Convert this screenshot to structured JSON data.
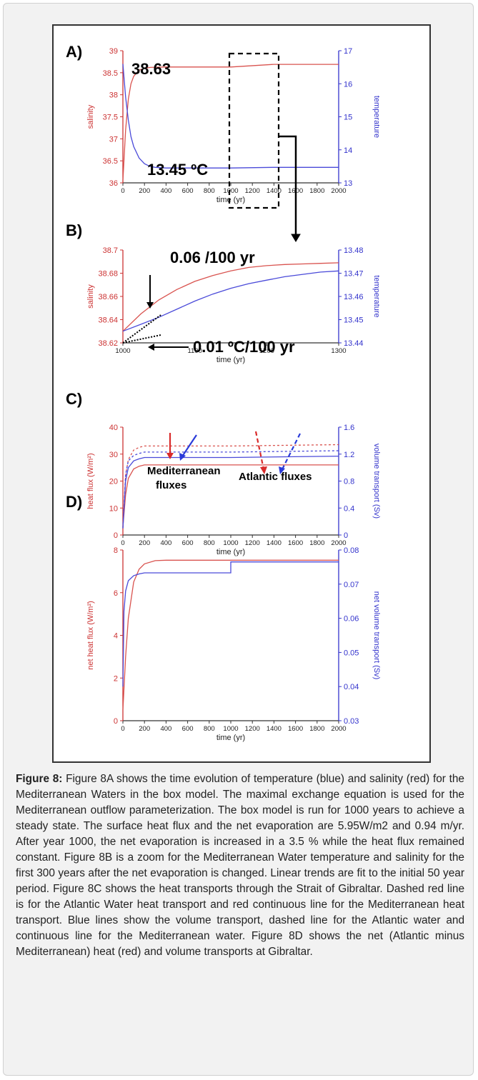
{
  "figure": {
    "panels": [
      {
        "id": "A",
        "label": "A)",
        "xlabel": "time (yr)",
        "ylabel_left": "salinity",
        "ylabel_right": "temperature",
        "annotations": [
          "38.63",
          "13.45 ºC"
        ]
      },
      {
        "id": "B",
        "label": "B)",
        "xlabel": "time (yr)",
        "ylabel_left": "salinity",
        "ylabel_right": "temperature",
        "annotations": [
          "0.06 /100 yr",
          "0.01 ºC/100 yr"
        ]
      },
      {
        "id": "C",
        "label": "C)",
        "xlabel": "time (yr)",
        "ylabel_left": "heat flux (W/m²)",
        "ylabel_right": "volume transport (Sv)",
        "annotations": [
          "Mediterranean",
          "fluxes",
          "Atlantic fluxes"
        ]
      },
      {
        "id": "D",
        "label": "D)",
        "xlabel": "time (yr)",
        "ylabel_left": "net heat flux (W/m²)",
        "ylabel_right": "net volume transport (Sv)",
        "annotations": []
      }
    ]
  },
  "chart_data": [
    {
      "type": "line",
      "panel": "A",
      "xlim": [
        0,
        2000
      ],
      "xticks": [
        0,
        200,
        400,
        600,
        800,
        1000,
        1200,
        1400,
        1600,
        1800,
        2000
      ],
      "ylim_left": [
        36,
        39
      ],
      "yticks_left": [
        36,
        36.5,
        37,
        37.5,
        38,
        38.5,
        39
      ],
      "ylim_right": [
        13,
        17
      ],
      "yticks_right": [
        13,
        14,
        15,
        16,
        17
      ],
      "series": [
        {
          "axis": "left",
          "color": "#d9534f",
          "x": [
            0,
            25,
            50,
            75,
            100,
            150,
            200,
            250,
            300,
            400,
            600,
            1000,
            1400,
            2000
          ],
          "y": [
            36.05,
            37.2,
            37.9,
            38.25,
            38.42,
            38.56,
            38.6,
            38.62,
            38.625,
            38.63,
            38.63,
            38.63,
            38.69,
            38.69
          ]
        },
        {
          "axis": "right",
          "color": "#4a4ad9",
          "x": [
            0,
            25,
            50,
            75,
            100,
            150,
            200,
            250,
            300,
            400,
            600,
            1000,
            1400,
            2000
          ],
          "y": [
            16.6,
            15.6,
            14.9,
            14.4,
            14.1,
            13.75,
            13.58,
            13.5,
            13.47,
            13.45,
            13.45,
            13.45,
            13.47,
            13.47
          ]
        }
      ]
    },
    {
      "type": "line",
      "panel": "B",
      "xlim": [
        1000,
        1300
      ],
      "xticks": [
        1000,
        1100,
        1200,
        1300
      ],
      "ylim_left": [
        38.62,
        38.7
      ],
      "yticks_left": [
        38.62,
        38.64,
        38.66,
        38.68,
        38.7
      ],
      "ylim_right": [
        13.44,
        13.48
      ],
      "yticks_right": [
        13.44,
        13.45,
        13.46,
        13.47,
        13.48
      ],
      "series": [
        {
          "axis": "left",
          "color": "#d9534f",
          "x": [
            1000,
            1025,
            1050,
            1075,
            1100,
            1125,
            1150,
            1175,
            1200,
            1225,
            1250,
            1275,
            1300
          ],
          "y": [
            38.63,
            38.645,
            38.657,
            38.666,
            38.673,
            38.678,
            38.682,
            38.685,
            38.6865,
            38.6875,
            38.688,
            38.6885,
            38.689
          ]
        },
        {
          "axis": "right",
          "color": "#4a4ad9",
          "x": [
            1000,
            1025,
            1050,
            1075,
            1100,
            1125,
            1150,
            1175,
            1200,
            1225,
            1250,
            1275,
            1300
          ],
          "y": [
            13.445,
            13.448,
            13.451,
            13.4545,
            13.458,
            13.461,
            13.4635,
            13.4655,
            13.467,
            13.4685,
            13.4695,
            13.4705,
            13.471
          ]
        }
      ]
    },
    {
      "type": "line",
      "panel": "C",
      "xlim": [
        0,
        2000
      ],
      "xticks": [
        0,
        200,
        400,
        600,
        800,
        1000,
        1200,
        1400,
        1600,
        1800,
        2000
      ],
      "ylim_left": [
        0,
        40
      ],
      "yticks_left": [
        0,
        10,
        20,
        30,
        40
      ],
      "ylim_right": [
        0,
        1.6
      ],
      "yticks_right": [
        0,
        0.4,
        0.8,
        1.2,
        1.6
      ],
      "series": [
        {
          "axis": "left",
          "color": "#d9534f",
          "dashed": false,
          "x": [
            0,
            25,
            50,
            100,
            150,
            200,
            300,
            1000,
            2000
          ],
          "y": [
            3,
            15,
            21,
            24.5,
            25.5,
            26,
            26,
            26,
            26
          ]
        },
        {
          "axis": "left",
          "color": "#d9534f",
          "dashed": true,
          "x": [
            0,
            25,
            50,
            100,
            150,
            200,
            300,
            1000,
            2000
          ],
          "y": [
            3,
            22,
            28,
            31.5,
            32.5,
            33,
            33,
            33,
            33.5
          ]
        },
        {
          "axis": "right",
          "color": "#4a4ad9",
          "dashed": false,
          "x": [
            0,
            25,
            50,
            100,
            150,
            200,
            300,
            1000,
            2000
          ],
          "y": [
            0.1,
            0.8,
            1.0,
            1.1,
            1.13,
            1.15,
            1.15,
            1.15,
            1.17
          ]
        },
        {
          "axis": "right",
          "color": "#4a4ad9",
          "dashed": true,
          "x": [
            0,
            25,
            50,
            100,
            150,
            200,
            300,
            1000,
            2000
          ],
          "y": [
            0.1,
            0.9,
            1.1,
            1.18,
            1.21,
            1.23,
            1.23,
            1.23,
            1.25
          ]
        }
      ]
    },
    {
      "type": "line",
      "panel": "D",
      "xlim": [
        0,
        2000
      ],
      "xticks": [
        0,
        200,
        400,
        600,
        800,
        1000,
        1200,
        1400,
        1600,
        1800,
        2000
      ],
      "ylim_left": [
        0,
        8
      ],
      "yticks_left": [
        0,
        2,
        4,
        6,
        8
      ],
      "ylim_right": [
        0.03,
        0.08
      ],
      "yticks_right": [
        0.03,
        0.04,
        0.05,
        0.06,
        0.07,
        0.08
      ],
      "series": [
        {
          "axis": "left",
          "color": "#d9534f",
          "x": [
            0,
            25,
            50,
            100,
            150,
            200,
            300,
            400,
            600,
            1000,
            2000
          ],
          "y": [
            0.5,
            3.0,
            4.8,
            6.5,
            7.1,
            7.35,
            7.5,
            7.52,
            7.52,
            7.52,
            7.52
          ]
        },
        {
          "axis": "right",
          "color": "#4a4ad9",
          "x": [
            0,
            10,
            25,
            50,
            100,
            150,
            200,
            300,
            600,
            1000,
            1000,
            2000
          ],
          "y": [
            0.04,
            0.062,
            0.068,
            0.071,
            0.0725,
            0.073,
            0.0733,
            0.0733,
            0.0733,
            0.0733,
            0.0765,
            0.0765
          ]
        }
      ]
    }
  ],
  "caption": {
    "label": "Figure 8:",
    "text": " Figure 8A shows the time evolution of temperature (blue) and salinity (red) for the Mediterranean Waters in the box model. The maximal exchange equation is used for the Mediterranean outflow parameterization. The box model is run for 1000 years to achieve a steady state. The surface heat flux and the net evaporation are 5.95W/m2 and 0.94 m/yr. After year 1000, the net evaporation is increased in a 3.5 % while the heat flux remained constant. Figure 8B is a zoom for the Mediterranean Water temperature and salinity for the first 300 years after the net evaporation is changed. Linear trends are fit to the initial 50 year period. Figure 8C shows the heat transports through the Strait of Gibraltar. Dashed red line is for the Atlantic Water heat transport and red continuous line for the Mediterranean heat transport. Blue lines show the volume transport, dashed line for the Atlantic water and continuous line for the Mediterranean water. Figure 8D shows the net (Atlantic minus Mediterranean) heat (red) and volume transports at Gibraltar."
  },
  "colors": {
    "salinity": "#d9534f",
    "temperature": "#4a4ad9",
    "axis_left": "#cc3333",
    "axis_right": "#3333cc"
  }
}
